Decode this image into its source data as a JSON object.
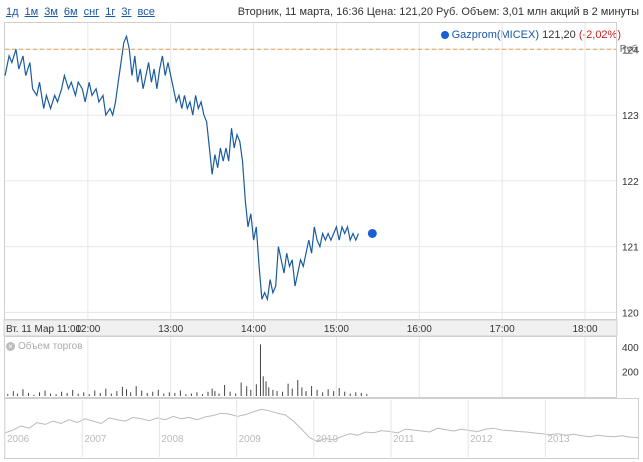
{
  "ranges": [
    "1д",
    "1м",
    "3м",
    "6м",
    "снг",
    "1г",
    "3г",
    "все"
  ],
  "info": "Вторник, 11 марта, 16:36  Цена: 121,20 Руб.  Объем: 3,01 млн акций в 2 минуты",
  "legend": {
    "name": "Gazprom(MICEX)",
    "value": "121,20",
    "change": "(-2,02%)"
  },
  "unit": "Руб.",
  "volume_label": "Объем торгов",
  "colors": {
    "line": "#1a5c9e",
    "dot": "#1a5fd6",
    "ref_line": "#e8a04a",
    "volume": "#444444",
    "overview": "#bbbbbb"
  },
  "chart_data": [
    {
      "type": "line",
      "series": [
        {
          "name": "Gazprom(MICEX)",
          "x_minutes": "minutes after 11:00",
          "y": [
            [
              0,
              123.6
            ],
            [
              3,
              123.9
            ],
            [
              5,
              123.8
            ],
            [
              8,
              124.0
            ],
            [
              10,
              123.7
            ],
            [
              13,
              123.9
            ],
            [
              15,
              123.6
            ],
            [
              18,
              123.8
            ],
            [
              20,
              123.4
            ],
            [
              23,
              123.3
            ],
            [
              25,
              123.5
            ],
            [
              28,
              123.1
            ],
            [
              30,
              123.3
            ],
            [
              33,
              123.1
            ],
            [
              36,
              123.3
            ],
            [
              38,
              123.2
            ],
            [
              41,
              123.4
            ],
            [
              43,
              123.6
            ],
            [
              46,
              123.4
            ],
            [
              48,
              123.5
            ],
            [
              51,
              123.3
            ],
            [
              53,
              123.5
            ],
            [
              56,
              123.4
            ],
            [
              58,
              123.2
            ],
            [
              61,
              123.5
            ],
            [
              63,
              123.3
            ],
            [
              66,
              123.4
            ],
            [
              68,
              123.2
            ],
            [
              71,
              123.3
            ],
            [
              73,
              123.0
            ],
            [
              76,
              123.1
            ],
            [
              78,
              123.0
            ],
            [
              80,
              123.2
            ],
            [
              82,
              123.5
            ],
            [
              84,
              123.8
            ],
            [
              86,
              124.1
            ],
            [
              88,
              124.2
            ],
            [
              90,
              124.0
            ],
            [
              92,
              123.6
            ],
            [
              94,
              123.9
            ],
            [
              96,
              123.5
            ],
            [
              98,
              123.7
            ],
            [
              100,
              123.4
            ],
            [
              102,
              123.6
            ],
            [
              104,
              123.8
            ],
            [
              106,
              123.5
            ],
            [
              108,
              123.7
            ],
            [
              110,
              123.4
            ],
            [
              112,
              123.7
            ],
            [
              114,
              123.9
            ],
            [
              116,
              123.6
            ],
            [
              118,
              123.8
            ],
            [
              120,
              123.6
            ],
            [
              122,
              123.4
            ],
            [
              124,
              123.2
            ],
            [
              126,
              123.3
            ],
            [
              128,
              123.1
            ],
            [
              130,
              123.3
            ],
            [
              132,
              123.1
            ],
            [
              134,
              123.2
            ],
            [
              136,
              123.0
            ],
            [
              138,
              123.3
            ],
            [
              140,
              123.1
            ],
            [
              142,
              123.2
            ],
            [
              144,
              123.0
            ],
            [
              146,
              122.9
            ],
            [
              148,
              122.5
            ],
            [
              150,
              122.1
            ],
            [
              152,
              122.4
            ],
            [
              154,
              122.2
            ],
            [
              156,
              122.5
            ],
            [
              158,
              122.3
            ],
            [
              160,
              122.5
            ],
            [
              162,
              122.3
            ],
            [
              164,
              122.8
            ],
            [
              166,
              122.5
            ],
            [
              168,
              122.7
            ],
            [
              170,
              122.6
            ],
            [
              172,
              122.3
            ],
            [
              174,
              121.7
            ],
            [
              176,
              121.3
            ],
            [
              178,
              121.5
            ],
            [
              180,
              121.1
            ],
            [
              182,
              121.3
            ],
            [
              184,
              120.7
            ],
            [
              186,
              120.2
            ],
            [
              188,
              120.3
            ],
            [
              190,
              120.2
            ],
            [
              192,
              120.5
            ],
            [
              194,
              120.3
            ],
            [
              196,
              120.4
            ],
            [
              198,
              121.0
            ],
            [
              200,
              120.8
            ],
            [
              202,
              120.6
            ],
            [
              204,
              120.9
            ],
            [
              206,
              120.7
            ],
            [
              208,
              120.8
            ],
            [
              210,
              120.4
            ],
            [
              212,
              120.6
            ],
            [
              214,
              120.8
            ],
            [
              216,
              120.7
            ],
            [
              218,
              120.9
            ],
            [
              220,
              121.1
            ],
            [
              222,
              120.9
            ],
            [
              224,
              121.3
            ],
            [
              226,
              121.1
            ],
            [
              228,
              121.0
            ],
            [
              230,
              121.2
            ],
            [
              232,
              121.1
            ],
            [
              234,
              121.2
            ],
            [
              236,
              121.1
            ],
            [
              238,
              121.2
            ],
            [
              240,
              121.3
            ],
            [
              242,
              121.1
            ],
            [
              244,
              121.3
            ],
            [
              246,
              121.2
            ],
            [
              248,
              121.3
            ],
            [
              250,
              121.1
            ],
            [
              252,
              121.2
            ],
            [
              254,
              121.1
            ],
            [
              256,
              121.2
            ]
          ]
        }
      ],
      "ylim": [
        119.9,
        124.4
      ],
      "yticks": [
        "120",
        "121",
        "122",
        "123",
        "124"
      ],
      "ref_value": 124.0,
      "xlim_minutes": [
        0,
        420
      ],
      "xticks": [
        {
          "label": "Вт. 11 Мар 11:00",
          "min": 0
        },
        {
          "label": "12:00",
          "min": 60
        },
        {
          "label": "13:00",
          "min": 120
        },
        {
          "label": "14:00",
          "min": 180
        },
        {
          "label": "15:00",
          "min": 240
        },
        {
          "label": "16:00",
          "min": 300
        },
        {
          "label": "17:00",
          "min": 360
        },
        {
          "label": "18:00",
          "min": 420
        }
      ],
      "last_point": {
        "min": 266,
        "value": 121.2
      },
      "grid": true
    },
    {
      "type": "bar",
      "title": "Объем торгов",
      "yticks": [
        "200",
        "400"
      ],
      "ylim": [
        0,
        480
      ],
      "bars": [
        [
          2,
          15
        ],
        [
          6,
          40
        ],
        [
          9,
          20
        ],
        [
          13,
          55
        ],
        [
          17,
          25
        ],
        [
          21,
          10
        ],
        [
          25,
          30
        ],
        [
          29,
          45
        ],
        [
          33,
          20
        ],
        [
          37,
          15
        ],
        [
          41,
          35
        ],
        [
          45,
          25
        ],
        [
          49,
          50
        ],
        [
          53,
          20
        ],
        [
          57,
          30
        ],
        [
          61,
          15
        ],
        [
          65,
          45
        ],
        [
          69,
          25
        ],
        [
          73,
          60
        ],
        [
          77,
          20
        ],
        [
          81,
          40
        ],
        [
          85,
          75
        ],
        [
          88,
          55
        ],
        [
          91,
          30
        ],
        [
          95,
          80
        ],
        [
          99,
          45
        ],
        [
          103,
          25
        ],
        [
          107,
          35
        ],
        [
          111,
          50
        ],
        [
          115,
          20
        ],
        [
          119,
          30
        ],
        [
          123,
          25
        ],
        [
          127,
          45
        ],
        [
          131,
          15
        ],
        [
          135,
          20
        ],
        [
          139,
          30
        ],
        [
          143,
          15
        ],
        [
          147,
          35
        ],
        [
          150,
          60
        ],
        [
          152,
          40
        ],
        [
          155,
          20
        ],
        [
          159,
          90
        ],
        [
          163,
          35
        ],
        [
          167,
          20
        ],
        [
          171,
          110
        ],
        [
          175,
          80
        ],
        [
          178,
          50
        ],
        [
          182,
          95
        ],
        [
          185,
          420
        ],
        [
          187,
          160
        ],
        [
          189,
          120
        ],
        [
          191,
          70
        ],
        [
          194,
          50
        ],
        [
          197,
          40
        ],
        [
          201,
          35
        ],
        [
          205,
          100
        ],
        [
          208,
          60
        ],
        [
          212,
          130
        ],
        [
          215,
          70
        ],
        [
          218,
          40
        ],
        [
          222,
          80
        ],
        [
          226,
          50
        ],
        [
          230,
          30
        ],
        [
          234,
          55
        ],
        [
          238,
          40
        ],
        [
          242,
          65
        ],
        [
          246,
          35
        ],
        [
          250,
          20
        ],
        [
          254,
          30
        ],
        [
          258,
          25
        ],
        [
          262,
          15
        ]
      ]
    },
    {
      "type": "area",
      "title": "",
      "xticks": [
        "2006",
        "2007",
        "2008",
        "2009",
        "2010",
        "2011",
        "2012",
        "2013"
      ],
      "values": [
        30,
        36,
        45,
        40,
        52,
        48,
        55,
        50,
        58,
        52,
        60,
        55,
        50,
        62,
        58,
        55,
        63,
        60,
        56,
        62,
        58,
        65,
        60,
        63,
        58,
        64,
        67,
        72,
        70,
        65,
        69,
        75,
        80,
        77,
        72,
        68,
        55,
        38,
        20,
        12,
        18,
        15,
        22,
        28,
        25,
        32,
        30,
        35,
        33,
        30,
        38,
        36,
        34,
        32,
        40,
        37,
        34,
        38,
        35,
        33,
        38,
        40,
        36,
        35,
        33,
        32,
        30,
        28,
        26,
        28,
        25,
        27,
        24,
        22,
        25,
        23,
        22,
        24,
        21,
        20
      ]
    }
  ]
}
